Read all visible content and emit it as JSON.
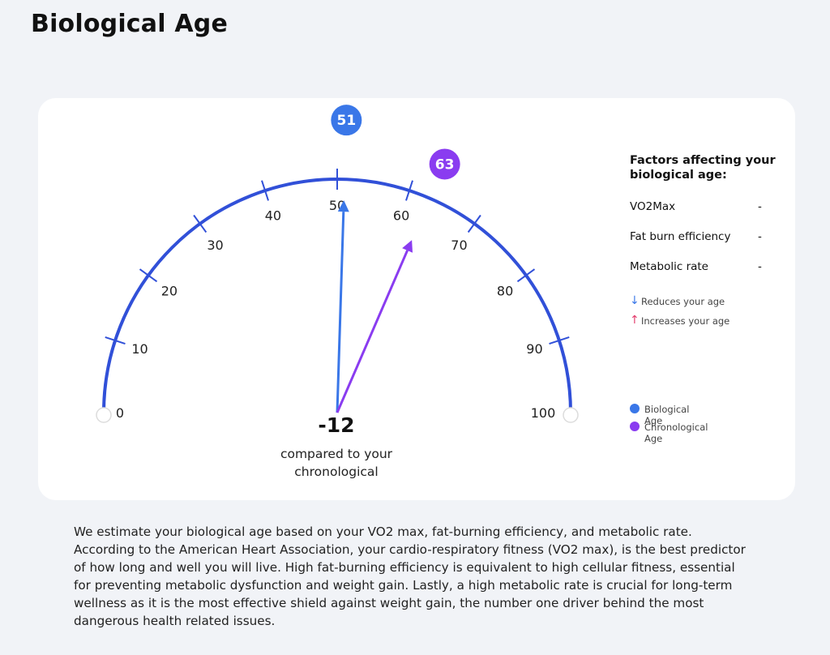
{
  "page": {
    "title": "Biological Age"
  },
  "gauge": {
    "min": 0,
    "max": 100,
    "ticks": [
      0,
      10,
      20,
      30,
      40,
      50,
      60,
      70,
      80,
      90,
      100
    ],
    "biological_age": 51,
    "chronological_age": 63,
    "difference": "-12",
    "caption_line1": "compared to your",
    "caption_line2": "chronological",
    "colors": {
      "arc": "#3150d8",
      "biological": "#3a77e8",
      "chronological": "#8a3cf0"
    }
  },
  "factors": {
    "title_line1": "Factors affecting your",
    "title_line2": "biological age:",
    "items": [
      {
        "name": "VO2Max",
        "value": "-"
      },
      {
        "name": "Fat burn efficiency",
        "value": "-"
      },
      {
        "name": "Metabolic rate",
        "value": "-"
      }
    ],
    "reduces_label": "Reduces your age",
    "increases_label": "Increases your age"
  },
  "legend": {
    "biological": "Biological Age",
    "chronological": "Chronological Age"
  },
  "description": "We estimate your biological age based on your VO2 max, fat-burning efficiency, and metabolic rate. According to the American Heart Association, your cardio-respiratory fitness (VO2 max), is the best predictor of how long and well you will live. High fat-burning efficiency is equivalent to high cellular fitness, essential for preventing metabolic dysfunction and weight gain. Lastly, a high metabolic rate is crucial for long-term wellness as it is the most effective shield against weight gain, the number one driver behind the most dangerous health related issues."
}
